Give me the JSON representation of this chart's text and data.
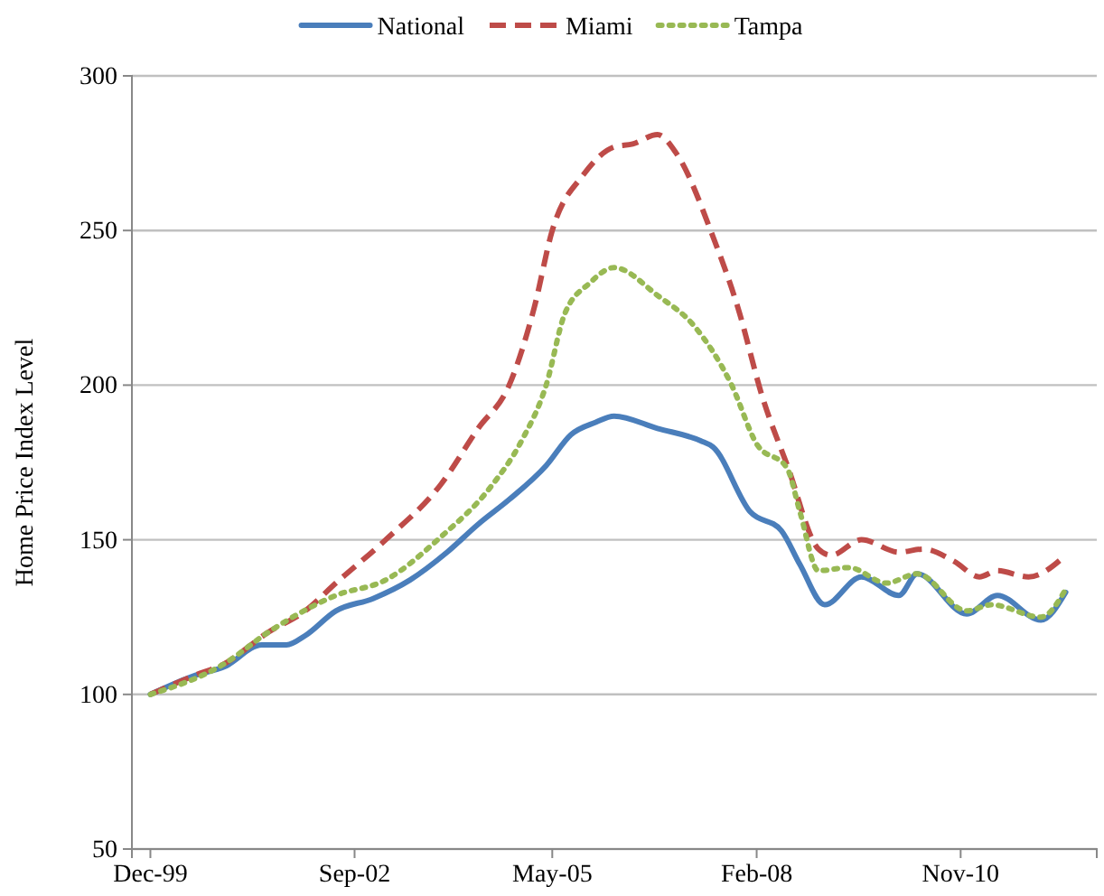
{
  "chart_data": {
    "type": "line",
    "ylabel": "Home Price Index Level",
    "ylim": [
      50,
      300
    ],
    "yticks": [
      50,
      100,
      150,
      200,
      250,
      300
    ],
    "xlim": [
      "1999-09",
      "2012-09"
    ],
    "xticks": [
      {
        "value": "1999-12",
        "label": "Dec-99"
      },
      {
        "value": "2002-09",
        "label": "Sep-02"
      },
      {
        "value": "2005-05",
        "label": "May-05"
      },
      {
        "value": "2008-02",
        "label": "Feb-08"
      },
      {
        "value": "2010-11",
        "label": "Nov-10"
      }
    ],
    "grid": "y",
    "legend": "top",
    "marker": "none",
    "series": [
      {
        "name": "National",
        "color": "#4a7ebb",
        "line_style": "solid",
        "x": [
          "1999-12",
          "2000-07",
          "2000-12",
          "2001-06",
          "2001-10",
          "2002-01",
          "2002-06",
          "2002-12",
          "2003-06",
          "2003-12",
          "2004-05",
          "2004-10",
          "2005-04",
          "2005-08",
          "2005-12",
          "2006-03",
          "2006-10",
          "2007-05",
          "2007-07",
          "2008-01",
          "2008-06",
          "2008-09",
          "2009-01",
          "2009-07",
          "2010-01",
          "2010-04",
          "2010-12",
          "2011-05",
          "2011-12",
          "2012-04"
        ],
        "values": [
          100,
          106,
          109,
          116,
          116,
          119,
          127,
          131,
          137,
          146,
          155,
          163,
          174,
          184,
          188,
          190,
          186,
          182,
          180,
          159,
          153,
          142,
          129,
          138,
          132,
          139,
          126,
          132,
          124,
          133
        ]
      },
      {
        "name": "Miami",
        "color": "#be4b48",
        "line_style": "dashed",
        "x": [
          "1999-12",
          "2000-07",
          "2000-12",
          "2001-07",
          "2002-01",
          "2002-06",
          "2003-02",
          "2003-11",
          "2004-05",
          "2004-10",
          "2005-02",
          "2005-05",
          "2005-10",
          "2006-03",
          "2006-06",
          "2006-10",
          "2007-01",
          "2007-07",
          "2007-11",
          "2008-03",
          "2008-07",
          "2008-12",
          "2009-02",
          "2009-07",
          "2010-01",
          "2010-05",
          "2010-10",
          "2011-02",
          "2011-05",
          "2011-10",
          "2012-04"
        ],
        "values": [
          100,
          106,
          110,
          120,
          127,
          136,
          150,
          168,
          186,
          200,
          225,
          250,
          268,
          277,
          278,
          281,
          275,
          248,
          225,
          196,
          174,
          147,
          145,
          150,
          146,
          147,
          143,
          138,
          140,
          138,
          145
        ]
      },
      {
        "name": "Tampa",
        "color": "#98b954",
        "line_style": "dotted",
        "x": [
          "1999-12",
          "2000-12",
          "2001-07",
          "2002-06",
          "2003-02",
          "2003-11",
          "2004-07",
          "2004-12",
          "2005-04",
          "2005-07",
          "2005-11",
          "2006-03",
          "2006-10",
          "2007-04",
          "2007-10",
          "2008-02",
          "2008-07",
          "2008-09",
          "2008-12",
          "2009-05",
          "2009-11",
          "2010-04",
          "2010-12",
          "2011-04",
          "2011-12",
          "2012-04"
        ],
        "values": [
          100,
          110,
          120,
          132,
          137,
          151,
          167,
          182,
          200,
          223,
          233,
          238,
          229,
          219,
          200,
          181,
          173,
          159,
          140,
          141,
          136,
          139,
          127,
          129,
          125,
          134
        ]
      }
    ]
  }
}
